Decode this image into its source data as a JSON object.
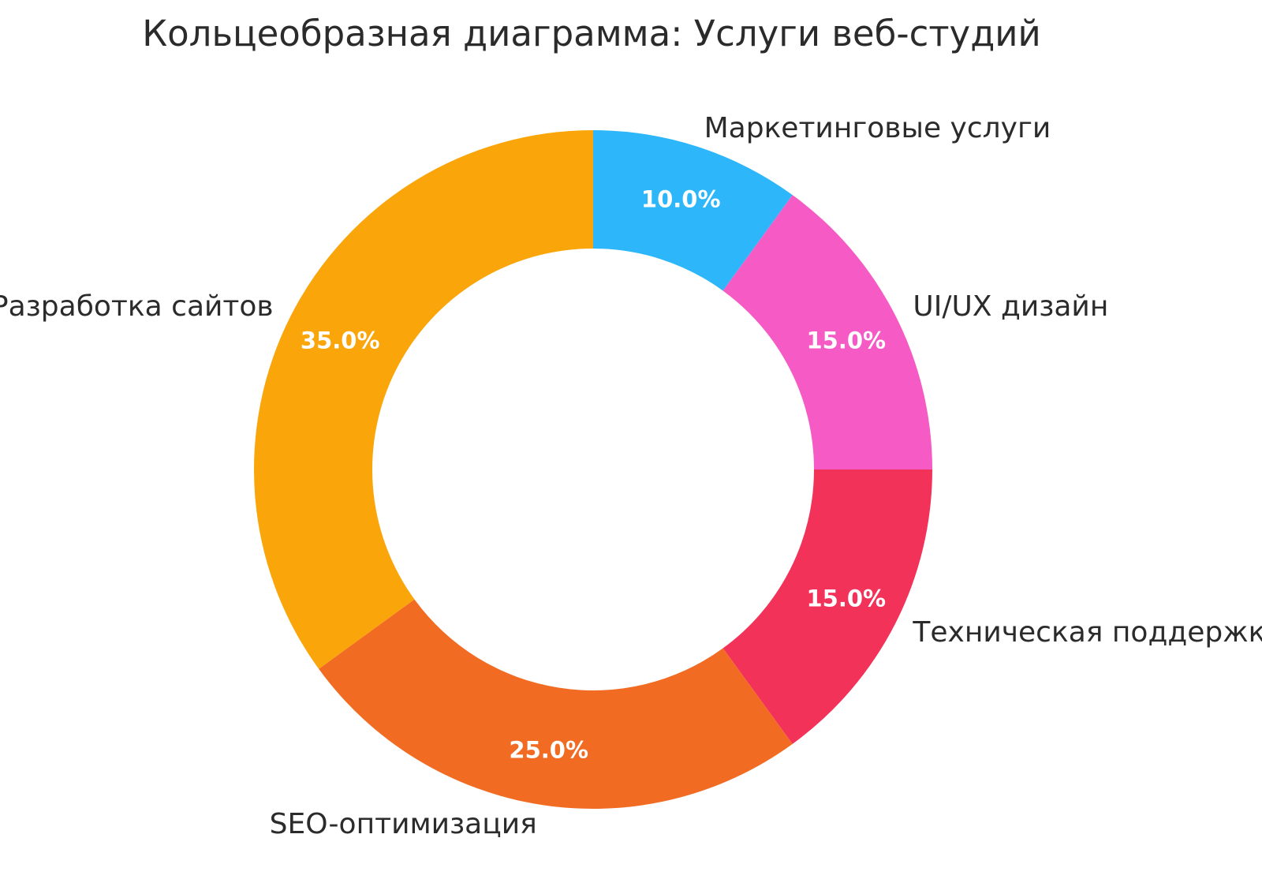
{
  "title": "Кольцеобразная диаграмма: Услуги веб-студий",
  "chart_data": {
    "type": "pie",
    "subtype": "donut",
    "title": "Кольцеобразная диаграмма: Услуги веб-студий",
    "labels": [
      "Маркетинговые услуги",
      "UI/UX дизайн",
      "Техническая поддержка",
      "SEO-оптимизация",
      "Разработка сайтов"
    ],
    "values": [
      10.0,
      15.0,
      15.0,
      25.0,
      35.0
    ],
    "value_labels": [
      "10.0%",
      "15.0%",
      "15.0%",
      "25.0%",
      "35.0%"
    ],
    "colors": [
      "#2DB7FA",
      "#F55AC5",
      "#F23259",
      "#F26B23",
      "#FAA50A"
    ],
    "start_angle_deg": 0,
    "direction": "clockwise",
    "donut_hole_ratio": 0.65,
    "legend": "none",
    "value_label_color": "#FFFFFF",
    "text_color": "#2B2B2B",
    "background_color": "#FFFFFF"
  }
}
